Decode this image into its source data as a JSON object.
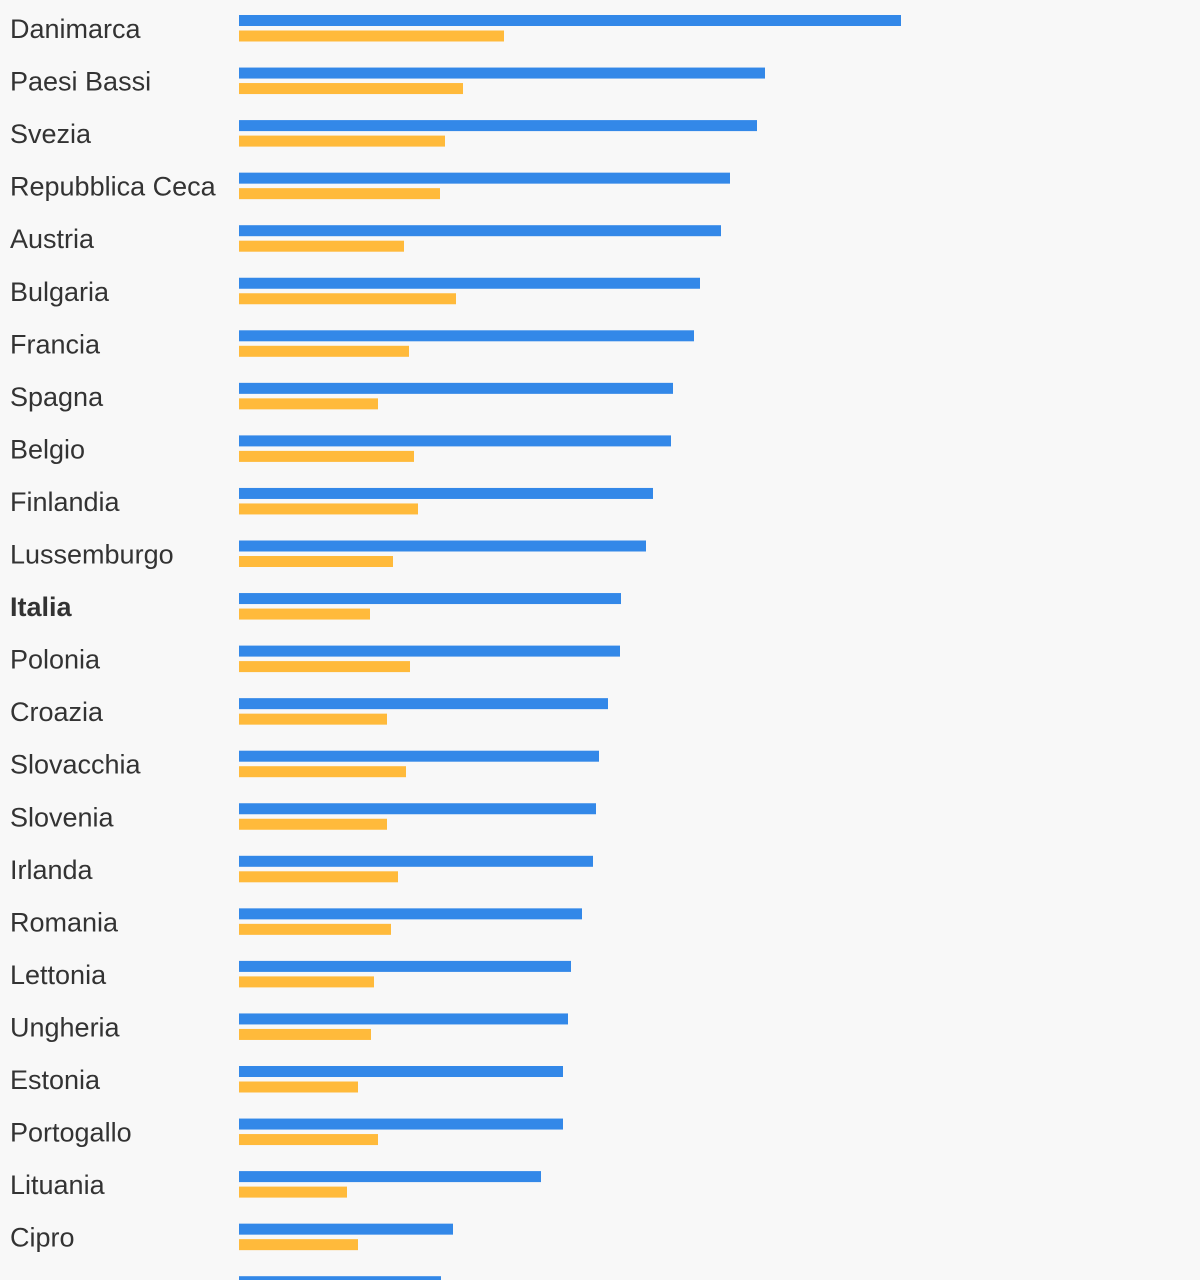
{
  "chart_data": {
    "type": "bar",
    "orientation": "horizontal",
    "title": "",
    "xlabel": "",
    "ylabel": "",
    "legend": "none",
    "grid": false,
    "highlight": "Italia",
    "categories": [
      "Danimarca",
      "Paesi Bassi",
      "Svezia",
      "Repubblica Ceca",
      "Austria",
      "Bulgaria",
      "Francia",
      "Spagna",
      "Belgio",
      "Finlandia",
      "Lussemburgo",
      "Italia",
      "Polonia",
      "Croazia",
      "Slovacchia",
      "Slovenia",
      "Irlanda",
      "Romania",
      "Lettonia",
      "Ungheria",
      "Estonia",
      "Portogallo",
      "Lituania",
      "Cipro",
      ""
    ],
    "series": [
      {
        "color": "#3388e8",
        "values": [
          662,
          526,
          518,
          491,
          482,
          461,
          455,
          434,
          432,
          414,
          407,
          382,
          381,
          369,
          360,
          357,
          354,
          343,
          332,
          329,
          324,
          324,
          302,
          214,
          202
        ]
      },
      {
        "color": "#ffba3b",
        "values": [
          265,
          224,
          206,
          201,
          165,
          217,
          170,
          139,
          175,
          179,
          154,
          131,
          171,
          148,
          167,
          148,
          159,
          152,
          135,
          132,
          119,
          139,
          108,
          119,
          null
        ]
      }
    ],
    "xlim": [
      0,
      700
    ]
  }
}
